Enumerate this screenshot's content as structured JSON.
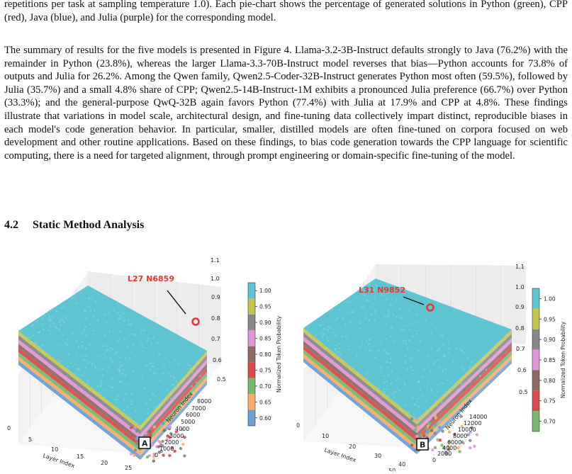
{
  "intro_paragraph": "repetitions per task at sampling temperature 1.0). Each pie-chart shows the percentage of generated solutions in Python (green), CPP (red), Java (blue), and Julia (purple) for the corresponding model.",
  "summary_paragraph": "The summary of results for the five models is presented in Figure 4. Llama-3.2-3B-Instruct defaults strongly to Java (76.2%) with the remainder in Python (23.8%), whereas the larger Llama-3.3-70B-Instruct model reverses that bias—Python accounts for 73.8% of outputs and Julia for 26.2%. Among the Qwen family, Qwen2.5-Coder-32B-Instruct generates Python most often (59.5%), followed by Julia (35.7%) and a small 4.8% share of CPP; Qwen2.5-14B-Instruct-1M exhibits a pronounced Julia preference (66.7%) over Python (33.3%); and the general-purpose QwQ-32B again favors Python (77.4%) with Julia at 17.9% and CPP at 4.8%. These findings illustrate that variations in model scale, architectural design, and fine-tuning data collectively impart distinct, reproducible biases in each model's code generation behavior. In particular, smaller, distilled models are often fine-tuned on corpora focused on web development and other routine applications. Based on these findings, to bias code generation towards the CPP language for scientific computing, there is a need for targeted alignment, through prompt engineering or domain-specific fine-tuning of the model.",
  "section": {
    "number": "4.2",
    "title": "Static Method Analysis"
  },
  "colors": {
    "layers": [
      "#5ec4d2",
      "#c5c650",
      "#888888",
      "#e096d8",
      "#8e6b62",
      "#d94a4d",
      "#76b96d",
      "#f6ad67",
      "#6b9ed6"
    ],
    "annotation": "#e8372f"
  },
  "chart_data": [
    {
      "type": "scatter",
      "panel_label": "A",
      "annotation": "L27 N6859",
      "xlabel": "Layer Index",
      "ylabel": "Neuron Index",
      "zlabel": "",
      "colorbar_label": "Normalized Token Probability",
      "x_ticks": [
        "0",
        "5",
        "10",
        "15",
        "20",
        "25"
      ],
      "y_ticks": [
        "0",
        "1000",
        "2000",
        "3000",
        "4000",
        "5000",
        "6000",
        "7000",
        "8000"
      ],
      "z_ticks": [
        "0.5",
        "0.6",
        "0.7",
        "0.8",
        "0.9",
        "1.0",
        "1.1"
      ],
      "colorbar_ticks": [
        "1.00",
        "0.95",
        "0.90",
        "0.85",
        "0.80",
        "0.75",
        "0.70",
        "0.65",
        "0.60"
      ],
      "highlight": {
        "layer": 27,
        "neuron": 6859
      }
    },
    {
      "type": "scatter",
      "panel_label": "B",
      "annotation": "L31 N9852",
      "xlabel": "Layer Index",
      "ylabel": "Neuron Index",
      "zlabel": "",
      "colorbar_label": "Normalized Token Probability",
      "x_ticks": [
        "0",
        "10",
        "20",
        "30",
        "40",
        "50"
      ],
      "y_ticks": [
        "0",
        "2000",
        "4000",
        "6000",
        "8000",
        "10000",
        "12000",
        "14000"
      ],
      "z_ticks": [
        "0.5",
        "0.6",
        "0.7",
        "0.8",
        "0.9",
        "1.0",
        "1.1"
      ],
      "colorbar_ticks": [
        "1.00",
        "0.95",
        "0.90",
        "0.85",
        "0.80",
        "0.75",
        "0.70"
      ],
      "highlight": {
        "layer": 31,
        "neuron": 9852
      }
    }
  ]
}
